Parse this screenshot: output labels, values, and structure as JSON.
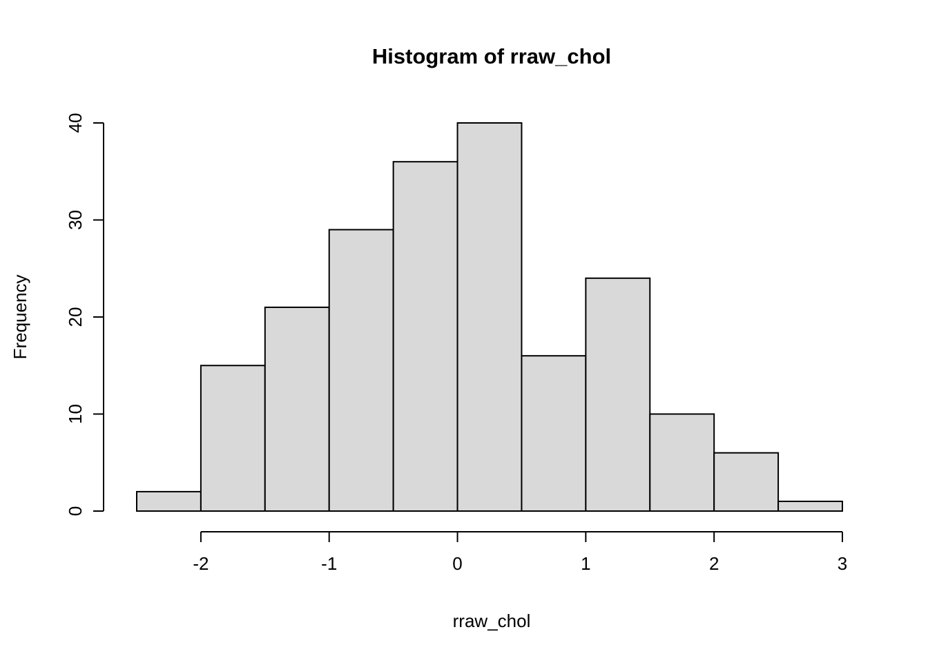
{
  "chart_data": {
    "type": "bar",
    "chart_kind": "histogram",
    "title": "Histogram of rraw_chol",
    "xlabel": "rraw_chol",
    "ylabel": "Frequency",
    "bin_edges": [
      -2.5,
      -2.0,
      -1.5,
      -1.0,
      -0.5,
      0.0,
      0.5,
      1.0,
      1.5,
      2.0,
      2.5,
      3.0
    ],
    "counts": [
      2,
      15,
      21,
      29,
      36,
      40,
      16,
      24,
      10,
      6,
      1
    ],
    "x_ticks": [
      -2,
      -1,
      0,
      1,
      2,
      3
    ],
    "y_ticks": [
      0,
      10,
      20,
      30,
      40
    ],
    "xlim": [
      -2.5,
      3.0
    ],
    "ylim": [
      0,
      40
    ],
    "grid": false,
    "legend": "none",
    "bar_fill": "#d9d9d9",
    "bar_stroke": "#000000",
    "axis_color": "#000000",
    "background": "#ffffff"
  }
}
